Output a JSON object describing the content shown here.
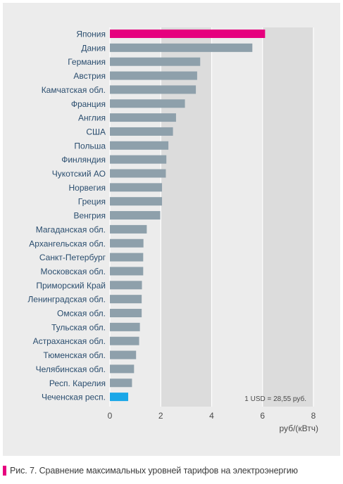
{
  "chart_data": {
    "type": "bar",
    "orientation": "horizontal",
    "categories": [
      "Япония",
      "Дания",
      "Германия",
      "Австрия",
      "Камчатская обл.",
      "Франция",
      "Англия",
      "США",
      "Польша",
      "Финляндия",
      "Чукотский АО",
      "Норвегия",
      "Греция",
      "Венгрия",
      "Магаданская обл.",
      "Архангельская обл.",
      "Санкт-Петербург",
      "Московская обл.",
      "Приморский Край",
      "Ленинградская обл.",
      "Омская обл.",
      "Тульская обл.",
      "Астраханская обл.",
      "Тюменская обл.",
      "Челябинская обл.",
      "Респ. Карелия",
      "Чеченская респ."
    ],
    "values": [
      6.1,
      5.6,
      3.55,
      3.43,
      3.38,
      2.95,
      2.6,
      2.48,
      2.3,
      2.22,
      2.2,
      2.05,
      2.05,
      1.98,
      1.45,
      1.32,
      1.31,
      1.31,
      1.26,
      1.25,
      1.25,
      1.18,
      1.15,
      1.03,
      0.95,
      0.87,
      0.72
    ],
    "highlight_colors": {
      "Япония": "#e6007e",
      "Чеченская респ.": "#1aa7e8"
    },
    "default_color": "#8ea0ab",
    "xlim": [
      0,
      8
    ],
    "xticks": [
      0,
      2,
      4,
      6,
      8
    ],
    "xlabel": "руб/(кВтч)",
    "grid": true,
    "note": "1 USD = 28,55 руб."
  },
  "caption": "Рис. 7. Сравнение максимальных уровней тарифов на электроэнергию",
  "colors": {
    "panel_bg": "#ececec",
    "grid_bands": "#dcdcdc",
    "grid_line": "#ffffff",
    "label_text": "#2a4d6e",
    "caption_marker": "#e6007e"
  }
}
